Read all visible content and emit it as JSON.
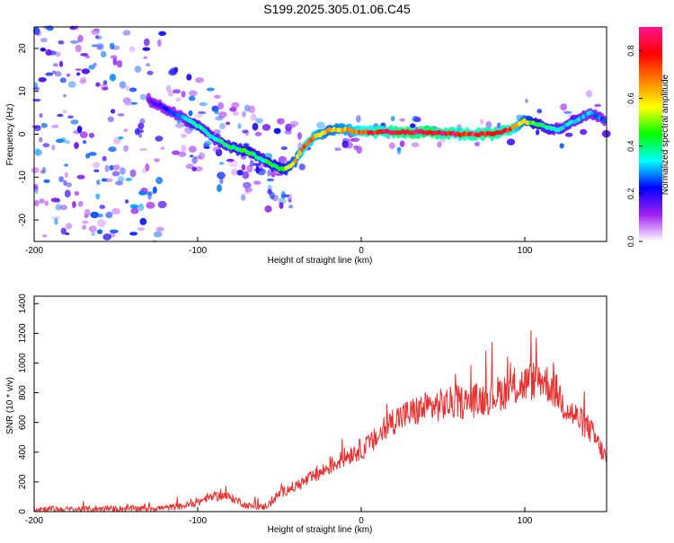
{
  "figure": {
    "title": "S199.2025.305.01.06.C45"
  },
  "chart_data": [
    {
      "type": "heatmap",
      "title": "",
      "xlabel": "Height of straight line (km)",
      "ylabel": "Frequency (Hz)",
      "xlim": [
        -200,
        150
      ],
      "ylim": [
        -25,
        25
      ],
      "xticks": [
        -200,
        -100,
        0,
        100
      ],
      "yticks": [
        -20,
        -10,
        0,
        10,
        20
      ],
      "ridge": {
        "x": [
          -130,
          -120,
          -110,
          -100,
          -90,
          -80,
          -70,
          -60,
          -50,
          -45,
          -40,
          -35,
          -30,
          -20,
          -10,
          0,
          20,
          40,
          60,
          80,
          90,
          100,
          110,
          120,
          130,
          140,
          145,
          150
        ],
        "freq": [
          8,
          6,
          4,
          2,
          -1,
          -3,
          -4,
          -6,
          -8,
          -8,
          -6,
          -3,
          -1,
          1,
          1,
          0.5,
          0.5,
          0.5,
          0,
          0,
          1,
          3,
          2,
          1,
          3,
          5,
          4,
          3
        ],
        "amplitude": [
          0.15,
          0.2,
          0.3,
          0.4,
          0.35,
          0.4,
          0.45,
          0.4,
          0.5,
          0.55,
          0.6,
          0.75,
          0.7,
          0.6,
          0.65,
          0.75,
          0.85,
          0.9,
          0.8,
          0.85,
          0.8,
          0.6,
          0.4,
          0.35,
          0.35,
          0.3,
          0.3,
          0.25
        ]
      },
      "colorbar": {
        "label": "Normalized spectral amplitude",
        "range": [
          0.0,
          0.9
        ],
        "ticks": [
          0.0,
          0.2,
          0.4,
          0.6,
          0.8
        ],
        "tick_labels": [
          "0.0",
          "0.2",
          "0.4",
          "0.6",
          "0.8"
        ],
        "colors": [
          "#ffffff",
          "#a020f0",
          "#0000ff",
          "#00ffff",
          "#00ff00",
          "#ffff00",
          "#ff8000",
          "#ff0000",
          "#ff1493"
        ]
      }
    },
    {
      "type": "line",
      "title": "",
      "xlabel": "Height of straight line (km)",
      "ylabel": "SNR (10 * v/v)",
      "xlim": [
        -200,
        150
      ],
      "ylim": [
        0,
        1450
      ],
      "xticks": [
        -200,
        -100,
        0,
        100
      ],
      "yticks": [
        0,
        200,
        400,
        600,
        800,
        1000,
        1200,
        1400
      ],
      "color": "#e83030",
      "series": [
        {
          "name": "SNR",
          "x": [
            -200,
            -180,
            -160,
            -140,
            -120,
            -110,
            -100,
            -95,
            -90,
            -85,
            -80,
            -75,
            -70,
            -60,
            -55,
            -50,
            -45,
            -40,
            -35,
            -30,
            -25,
            -20,
            -15,
            -10,
            -5,
            0,
            5,
            10,
            15,
            20,
            25,
            30,
            35,
            40,
            45,
            50,
            55,
            60,
            65,
            70,
            75,
            80,
            85,
            90,
            95,
            100,
            105,
            110,
            115,
            120,
            125,
            130,
            135,
            140,
            145,
            150
          ],
          "y": [
            20,
            15,
            18,
            20,
            25,
            35,
            60,
            90,
            100,
            110,
            95,
            70,
            40,
            30,
            60,
            120,
            150,
            170,
            200,
            230,
            260,
            300,
            330,
            370,
            400,
            420,
            450,
            500,
            560,
            620,
            640,
            660,
            680,
            700,
            710,
            720,
            730,
            740,
            730,
            750,
            760,
            780,
            800,
            820,
            840,
            860,
            880,
            900,
            850,
            800,
            700,
            650,
            600,
            550,
            450,
            350
          ]
        }
      ],
      "noise_amplitude": 120,
      "peak_label_max": 1450
    }
  ]
}
